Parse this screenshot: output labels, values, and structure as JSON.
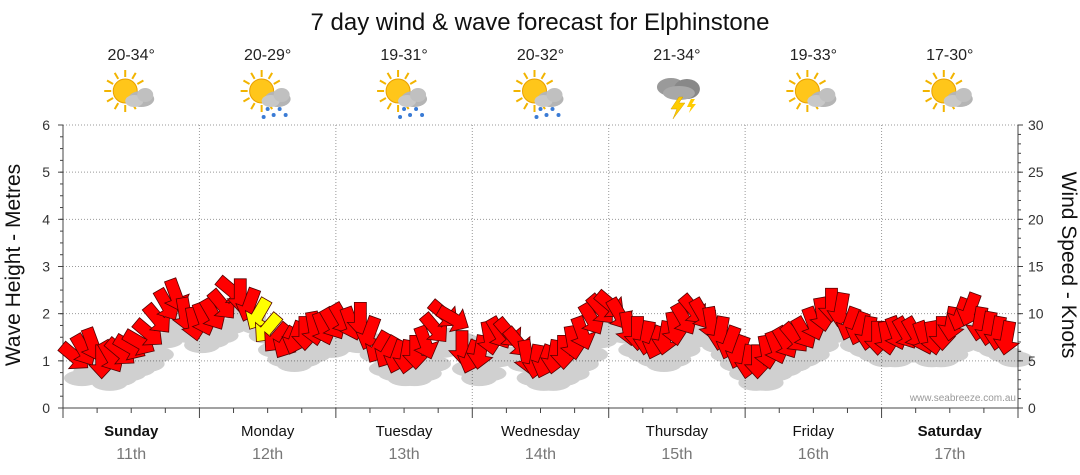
{
  "chart_data": {
    "type": "line",
    "title": "7 day wind & wave forecast for Elphinstone",
    "left_axis": {
      "label": "Wave Height - Metres",
      "range": [
        0,
        6
      ],
      "ticks": [
        "0",
        "1",
        "2",
        "3",
        "4",
        "5",
        "6"
      ]
    },
    "right_axis": {
      "label": "Wind Speed - Knots",
      "range": [
        0,
        30
      ],
      "ticks": [
        "0",
        "5",
        "10",
        "15",
        "20",
        "25",
        "30"
      ]
    },
    "grid": true,
    "days": [
      {
        "name": "Sunday",
        "date": "11th",
        "bold": true,
        "temp": "20-34°",
        "weather": "partly-cloudy-icon"
      },
      {
        "name": "Monday",
        "date": "12th",
        "bold": false,
        "temp": "20-29°",
        "weather": "sun-showers-icon"
      },
      {
        "name": "Tuesday",
        "date": "13th",
        "bold": false,
        "temp": "19-31°",
        "weather": "sun-showers-icon"
      },
      {
        "name": "Wednesday",
        "date": "14th",
        "bold": false,
        "temp": "20-32°",
        "weather": "sun-showers-icon"
      },
      {
        "name": "Thursday",
        "date": "15th",
        "bold": false,
        "temp": "21-34°",
        "weather": "thunderstorm-icon"
      },
      {
        "name": "Friday",
        "date": "16th",
        "bold": false,
        "temp": "19-33°",
        "weather": "partly-cloudy-icon"
      },
      {
        "name": "Saturday",
        "date": "17th",
        "bold": true,
        "temp": "17-30°",
        "weather": "partly-cloudy-icon"
      }
    ],
    "wind_knots": [
      5.5,
      6.2,
      6.8,
      5.0,
      5.5,
      6.0,
      6.5,
      7.0,
      8.0,
      9.5,
      11.0,
      12.0,
      10.0,
      9.0,
      9.5,
      10.0,
      11.0,
      12.5,
      12.0,
      11.0,
      10.0,
      8.5,
      7.5,
      7.0,
      7.5,
      8.0,
      8.5,
      8.5,
      9.0,
      9.5,
      9.0,
      9.5,
      8.0,
      6.5,
      6.0,
      5.5,
      5.5,
      6.0,
      7.0,
      8.5,
      10.0,
      9.5,
      6.5,
      5.5,
      6.0,
      7.5,
      8.0,
      8.0,
      7.0,
      5.5,
      5.0,
      5.0,
      5.5,
      6.0,
      7.0,
      8.0,
      9.5,
      10.5,
      11.0,
      10.0,
      8.5,
      8.0,
      7.5,
      7.0,
      7.5,
      8.5,
      9.5,
      10.5,
      10.0,
      9.0,
      8.0,
      7.0,
      6.0,
      5.0,
      5.0,
      6.0,
      6.5,
      7.0,
      7.5,
      8.0,
      9.0,
      10.0,
      11.0,
      10.5,
      9.0,
      8.5,
      8.0,
      7.5,
      7.5,
      8.0,
      8.0,
      8.0,
      7.5,
      7.5,
      8.0,
      9.0,
      10.0,
      10.5,
      9.0,
      8.5,
      8.0,
      7.5
    ],
    "wind_dir_deg": [
      40,
      60,
      70,
      90,
      60,
      40,
      30,
      30,
      40,
      50,
      60,
      70,
      80,
      80,
      70,
      60,
      50,
      40,
      90,
      110,
      120,
      130,
      130,
      120,
      110,
      90,
      80,
      70,
      60,
      60,
      70,
      90,
      110,
      120,
      120,
      110,
      100,
      90,
      70,
      50,
      40,
      30,
      90,
      110,
      100,
      80,
      60,
      50,
      50,
      80,
      100,
      110,
      100,
      90,
      80,
      70,
      60,
      50,
      40,
      60,
      80,
      90,
      100,
      110,
      100,
      80,
      60,
      50,
      60,
      80,
      100,
      110,
      110,
      100,
      90,
      80,
      70,
      60,
      50,
      60,
      70,
      80,
      90,
      100,
      110,
      110,
      100,
      90,
      80,
      70,
      60,
      60,
      70,
      80,
      90,
      100,
      110,
      110,
      100,
      100,
      100,
      100
    ],
    "highlight_points": [
      20,
      21
    ],
    "colors": {
      "arrow": "#ff0000",
      "highlight": "#ffff00",
      "grid": "#999999"
    },
    "credit": "www.seabreeze.com.au"
  }
}
